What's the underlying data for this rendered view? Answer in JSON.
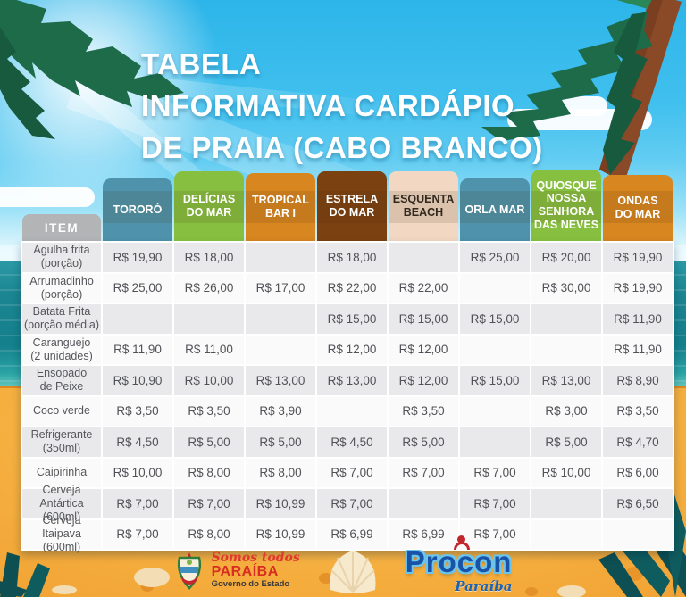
{
  "chart_data": {
    "type": "table",
    "title": "TABELA INFORMATIVA CARDÁPIO DE PRAIA (CABO BRANCO)",
    "title_lines": [
      "TABELA",
      "INFORMATIVA CARDÁPIO",
      "DE PRAIA (CABO BRANCO)"
    ],
    "item_header": "ITEM",
    "currency": "R$",
    "columns": [
      {
        "label": "TORORÓ",
        "color": "#4e93ab",
        "text_color": "#ffffff"
      },
      {
        "label": "DELÍCIAS\nDO MAR",
        "color": "#87c040",
        "text_color": "#ffffff"
      },
      {
        "label": "TROPICAL\nBAR I",
        "color": "#d8861f",
        "text_color": "#ffffff"
      },
      {
        "label": "ESTRELA\nDO MAR",
        "color": "#7b4110",
        "text_color": "#ffffff"
      },
      {
        "label": "ESQUENTA\nBEACH",
        "color": "#f2d8c3",
        "text_color": "#32281e"
      },
      {
        "label": "ORLA MAR",
        "color": "#4e93ab",
        "text_color": "#ffffff"
      },
      {
        "label": "QUIOSQUE\nNOSSA\nSENHORA\nDAS NEVES",
        "color": "#87c040",
        "text_color": "#ffffff"
      },
      {
        "label": "ONDAS\nDO MAR",
        "color": "#d8861f",
        "text_color": "#ffffff"
      }
    ],
    "rows": [
      {
        "item": "Agulha frita\n(porção)",
        "prices": [
          "R$ 19,90",
          "R$ 18,00",
          "",
          "R$ 18,00",
          "",
          "R$ 25,00",
          "R$ 20,00",
          "R$ 19,90"
        ]
      },
      {
        "item": "Arrumadinho\n(porção)",
        "prices": [
          "R$ 25,00",
          "R$ 26,00",
          "R$ 17,00",
          "R$ 22,00",
          "R$ 22,00",
          "",
          "R$ 30,00",
          "R$ 19,90"
        ]
      },
      {
        "item": "Batata Frita\n(porção média)",
        "prices": [
          "",
          "",
          "",
          "R$ 15,00",
          "R$ 15,00",
          "R$ 15,00",
          "",
          "R$ 11,90"
        ]
      },
      {
        "item": "Caranguejo\n(2 unidades)",
        "prices": [
          "R$ 11,90",
          "R$ 11,00",
          "",
          "R$ 12,00",
          "R$ 12,00",
          "",
          "",
          "R$ 11,90"
        ]
      },
      {
        "item": "Ensopado\nde Peixe",
        "prices": [
          "R$ 10,90",
          "R$ 10,00",
          "R$ 13,00",
          "R$ 13,00",
          "R$ 12,00",
          "R$ 15,00",
          "R$ 13,00",
          "R$ 8,90"
        ]
      },
      {
        "item": "Coco verde",
        "prices": [
          "R$ 3,50",
          "R$ 3,50",
          "R$ 3,90",
          "",
          "R$ 3,50",
          "",
          "R$ 3,00",
          "R$ 3,50"
        ]
      },
      {
        "item": "Refrigerante\n(350ml)",
        "prices": [
          "R$ 4,50",
          "R$ 5,00",
          "R$ 5,00",
          "R$ 4,50",
          "R$ 5,00",
          "",
          "R$ 5,00",
          "R$ 4,70"
        ]
      },
      {
        "item": "Caipirinha",
        "prices": [
          "R$ 10,00",
          "R$ 8,00",
          "R$ 8,00",
          "R$ 7,00",
          "R$ 7,00",
          "R$ 7,00",
          "R$ 10,00",
          "R$ 6,00"
        ]
      },
      {
        "item": "Cerveja Antártica\n(600ml)",
        "prices": [
          "R$ 7,00",
          "R$ 7,00",
          "R$ 10,99",
          "R$ 7,00",
          "",
          "R$ 7,00",
          "",
          "R$ 6,50"
        ]
      },
      {
        "item": "Cerveja Itaipava\n(600ml)",
        "prices": [
          "R$ 7,00",
          "R$ 8,00",
          "R$ 10,99",
          "R$ 6,99",
          "R$ 6,99",
          "R$ 7,00",
          "",
          ""
        ]
      }
    ],
    "layout_hints": {
      "striped_rows": true,
      "header_tabs_rounded": true
    }
  },
  "footer": {
    "gov": {
      "script": "Somos todos",
      "name": "PARAÍBA",
      "sub": "Governo do Estado"
    },
    "procon": {
      "name": "Procon",
      "sub": "Paraíba"
    }
  },
  "icons": {
    "sun": "sun-glow-icon",
    "palms": "palm-leaves-icon",
    "shell": "seashell-icon",
    "crest": "paraiba-coat-of-arms-icon",
    "figure": "procon-person-icon"
  },
  "colors": {
    "sky": "#3cbdec",
    "sea": "#14808c",
    "sand": "#f5ae3e",
    "teal_tab": "#4e93ab",
    "green_tab": "#87c040",
    "orange_tab": "#d8861f",
    "brown_tab": "#7b4110",
    "peach_tab": "#f2d8c3",
    "row_odd": "#e9e9eb",
    "row_even": "#fafafa",
    "gov_red": "#d92c22",
    "procon_blue": "#1853a8"
  }
}
